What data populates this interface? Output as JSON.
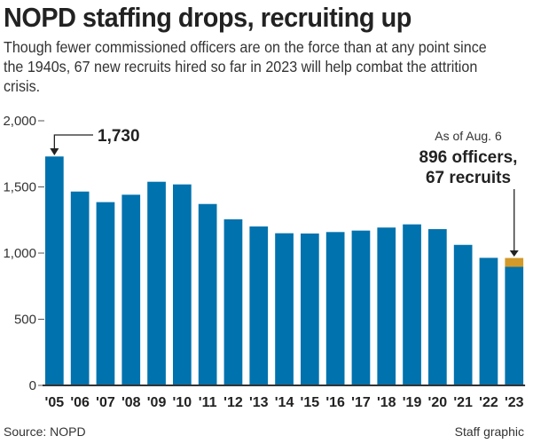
{
  "chart_data": {
    "type": "bar",
    "stacked": true,
    "title": "NOPD staffing drops, recruiting up",
    "subtitle": "Though fewer commissioned officers are on the force than at any point since the 1940s, 67 new recruits hired so far in 2023 will help combat the attrition crisis.",
    "categories": [
      "'05",
      "'06",
      "'07",
      "'08",
      "'09",
      "'10",
      "'11",
      "'12",
      "'13",
      "'14",
      "'15",
      "'16",
      "'17",
      "'18",
      "'19",
      "'20",
      "'21",
      "'22",
      "'23"
    ],
    "series": [
      {
        "values": [
          1730,
          1465,
          1385,
          1441,
          1539,
          1519,
          1371,
          1255,
          1201,
          1150,
          1148,
          1159,
          1170,
          1193,
          1217,
          1181,
          1062,
          964,
          896
        ],
        "color": "#0072ae"
      },
      {
        "values": [
          0,
          0,
          0,
          0,
          0,
          0,
          0,
          0,
          0,
          0,
          0,
          0,
          0,
          0,
          0,
          0,
          0,
          0,
          67
        ],
        "color": "#d19a2a"
      }
    ],
    "ylim": [
      0,
      2000
    ],
    "yticks": [
      0,
      500,
      1000,
      1500,
      2000
    ],
    "ytick_labels": [
      "0",
      "500",
      "1,000",
      "1,500",
      "2,000"
    ],
    "grid": false,
    "annotations": {
      "peak": "1,730",
      "asof": "As of Aug. 6",
      "last_line1": "896 officers,",
      "last_line2": "67 recruits"
    },
    "source": "Source: NOPD",
    "credit": "Staff graphic"
  }
}
